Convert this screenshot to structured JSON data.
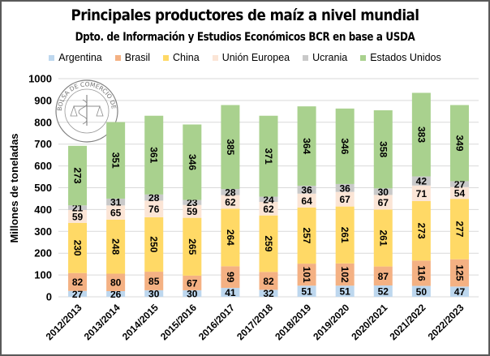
{
  "chart_data": {
    "type": "bar",
    "stacked": true,
    "title": "Principales productores de maíz a nivel mundial",
    "subtitle": "Dpto. de Información y Estudios Económicos BCR en base a USDA",
    "xlabel": "",
    "ylabel": "Millones de toneladas",
    "ylim": [
      0,
      1000
    ],
    "yticks": [
      0,
      100,
      200,
      300,
      400,
      500,
      600,
      700,
      800,
      900,
      1000
    ],
    "grid": true,
    "legend_position": "top",
    "watermark": "Bolsa de Comercio de Rosario",
    "categories": [
      "2012/2013",
      "2013/2014",
      "2014/2015",
      "2015/2016",
      "2016/2017",
      "2017/2018",
      "2018/2019",
      "2019/2020",
      "2020/2021",
      "2021/2022",
      "2022/2023"
    ],
    "series": [
      {
        "name": "Argentina",
        "color": "#bdd7ee",
        "values": [
          27,
          26,
          30,
          30,
          41,
          32,
          51,
          51,
          52,
          50,
          47
        ]
      },
      {
        "name": "Brasil",
        "color": "#f4b183",
        "values": [
          82,
          80,
          85,
          67,
          99,
          82,
          101,
          102,
          87,
          116,
          125
        ]
      },
      {
        "name": "China",
        "color": "#ffd966",
        "values": [
          230,
          248,
          250,
          265,
          264,
          259,
          257,
          261,
          261,
          273,
          277
        ]
      },
      {
        "name": "Unión Europea",
        "color": "#fbe5d6",
        "values": [
          59,
          65,
          76,
          59,
          62,
          62,
          64,
          67,
          67,
          71,
          54
        ]
      },
      {
        "name": "Ucrania",
        "color": "#c9c9c9",
        "values": [
          21,
          31,
          28,
          23,
          28,
          24,
          36,
          36,
          30,
          42,
          27
        ]
      },
      {
        "name": "Estados Unidos",
        "color": "#a9d18e",
        "values": [
          273,
          351,
          361,
          346,
          385,
          371,
          364,
          346,
          358,
          383,
          349
        ]
      }
    ]
  }
}
